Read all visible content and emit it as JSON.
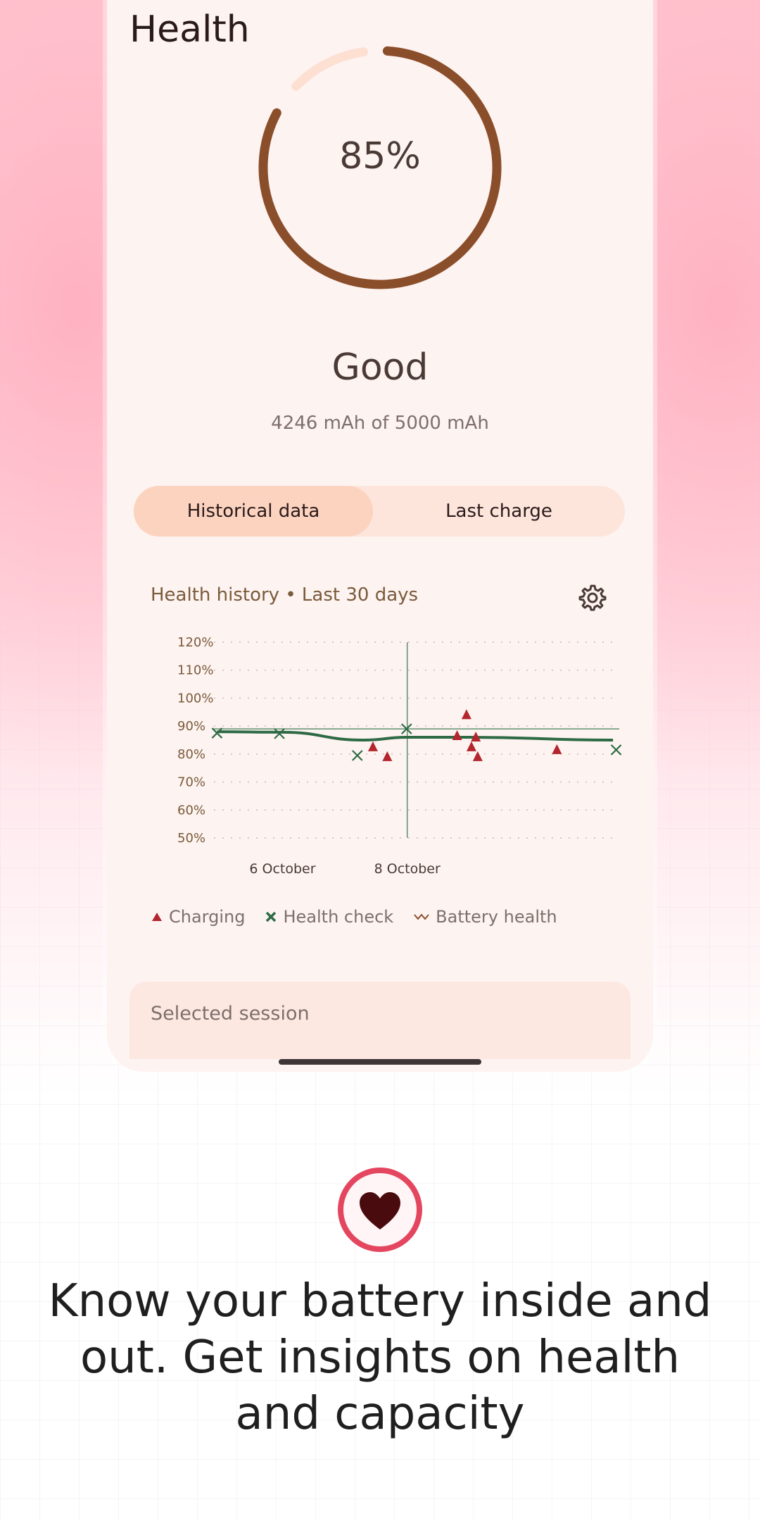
{
  "screen": {
    "title": "Health",
    "gauge": {
      "percent_label": "85%",
      "value": 0.85
    },
    "status": "Good",
    "capacity": "4246 mAh of 5000 mAh",
    "tabs": [
      {
        "label": "Historical data",
        "selected": true
      },
      {
        "label": "Last charge",
        "selected": false
      }
    ],
    "chart_header": "Health history • Last 30 days",
    "settings_icon": "gear-icon",
    "selected_session_label": "Selected session"
  },
  "chart_data": {
    "type": "line",
    "title": "Health history • Last 30 days",
    "ylabel": "",
    "xlabel": "",
    "ylim": [
      50,
      120
    ],
    "y_ticks": [
      "120%",
      "110%",
      "100%",
      "90%",
      "80%",
      "70%",
      "60%",
      "50%"
    ],
    "x_ticks": [
      "6 October",
      "8 October"
    ],
    "xlim_days": [
      4.9,
      11.4
    ],
    "grid": true,
    "crosshair": {
      "day": 8.0,
      "value": 89
    },
    "series": [
      {
        "name": "Battery health",
        "kind": "line",
        "color": "#2e6b45",
        "points": [
          [
            4.95,
            88
          ],
          [
            6.0,
            87.8
          ],
          [
            7.3,
            85
          ],
          [
            8.0,
            86
          ],
          [
            9.0,
            86
          ],
          [
            11.3,
            85
          ]
        ]
      },
      {
        "name": "Health check",
        "kind": "x-marker",
        "color": "#2e6b45",
        "points": [
          [
            4.95,
            87.5
          ],
          [
            5.95,
            87.3
          ],
          [
            7.2,
            79.5
          ],
          [
            7.99,
            89
          ],
          [
            11.35,
            81.5
          ]
        ]
      },
      {
        "name": "Charging",
        "kind": "triangle",
        "color": "#b3262d",
        "points": [
          [
            7.45,
            82.5
          ],
          [
            7.68,
            79
          ],
          [
            8.8,
            86.5
          ],
          [
            8.95,
            94
          ],
          [
            9.03,
            82.5
          ],
          [
            9.1,
            86
          ],
          [
            9.13,
            79
          ],
          [
            10.4,
            81.5
          ]
        ]
      }
    ],
    "legend": [
      "Charging",
      "Health check",
      "Battery health"
    ]
  },
  "colors": {
    "ring_fill": "#8b4e2b",
    "ring_track": "#fde0d2",
    "accent_pink": "#e4465f",
    "heart": "#4a0b0e"
  },
  "footer": {
    "tagline": "Know your battery inside and out. Get insights on health and capacity",
    "icon": "heart-icon"
  }
}
